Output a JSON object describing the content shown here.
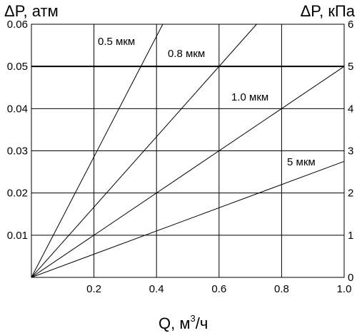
{
  "chart_data": {
    "type": "line",
    "title": "",
    "xlabel": "Q, м",
    "xlabel_sup": "3",
    "xlabel_suffix": "/ч",
    "ylabel_left": "ΔP, атм",
    "ylabel_right": "ΔP, кПа",
    "xlim": [
      0,
      1.0
    ],
    "ylim_left": [
      0,
      0.06
    ],
    "ylim_right": [
      0,
      6
    ],
    "x_ticks": [
      "0.2",
      "0.4",
      "0.6",
      "0.8",
      "1.0"
    ],
    "y_ticks_left": [
      "0.01",
      "0.02",
      "0.03",
      "0.04",
      "0.05",
      "0.06"
    ],
    "y_ticks_right": [
      "0",
      "1",
      "2",
      "3",
      "4",
      "5",
      "6"
    ],
    "grid": true,
    "highlight_line": {
      "y": 0.05,
      "note": "thicker horizontal line"
    },
    "series": [
      {
        "name": "0.5 мкм",
        "x": [
          0,
          0.42
        ],
        "y": [
          0,
          0.06
        ]
      },
      {
        "name": "0.8 мкм",
        "x": [
          0,
          0.72
        ],
        "y": [
          0,
          0.06
        ]
      },
      {
        "name": "1.0 мкм",
        "x": [
          0,
          1.0
        ],
        "y": [
          0,
          0.05
        ]
      },
      {
        "name": "5 мкм",
        "x": [
          0,
          1.0
        ],
        "y": [
          0,
          0.0275
        ]
      }
    ]
  }
}
